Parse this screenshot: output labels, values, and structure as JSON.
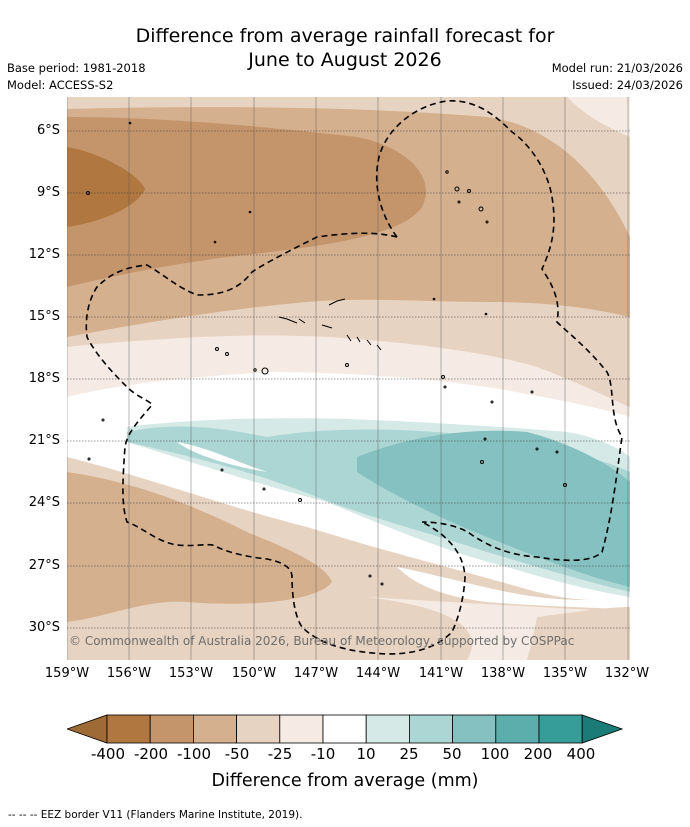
{
  "title_line1": "Difference from average rainfall forecast for",
  "title_line2": "June to August 2026",
  "base_period": "Base period: 1981-2018",
  "model": "Model: ACCESS-S2",
  "model_run": "Model run: 21/03/2026",
  "issued": "Issued: 24/03/2026",
  "copyright": "© Commonwealth of Australia 2026, Bureau of Meteorology, supported by COSPPac",
  "footnote": "--  --  -- EEZ border V11 (Flanders Marine Institute, 2019).",
  "chart_data": {
    "type": "heatmap",
    "variable": "Difference from average rainfall",
    "colorbar_label": "Difference from average (mm)",
    "lat_ticks": [
      "6°S",
      "9°S",
      "12°S",
      "15°S",
      "18°S",
      "21°S",
      "24°S",
      "27°S",
      "30°S"
    ],
    "lon_ticks": [
      "159°W",
      "156°W",
      "153°W",
      "150°W",
      "147°W",
      "144°W",
      "141°W",
      "138°W",
      "135°W",
      "132°W"
    ],
    "lat_range": [
      -31.5,
      -4.7
    ],
    "lon_range": [
      -159,
      -132
    ],
    "levels": [
      "-400",
      "-200",
      "-100",
      "-50",
      "-25",
      "-10",
      "10",
      "25",
      "50",
      "100",
      "200",
      "400"
    ],
    "colors": [
      "#9e6a36",
      "#b07840",
      "#c4946a",
      "#d5b08e",
      "#e7d3c1",
      "#f5ebe4",
      "#ffffff",
      "#d5e9e7",
      "#acd6d4",
      "#85c1c0",
      "#5caeac",
      "#379d99",
      "#1a7b77"
    ],
    "overlay": "EEZ border (dashed)"
  }
}
